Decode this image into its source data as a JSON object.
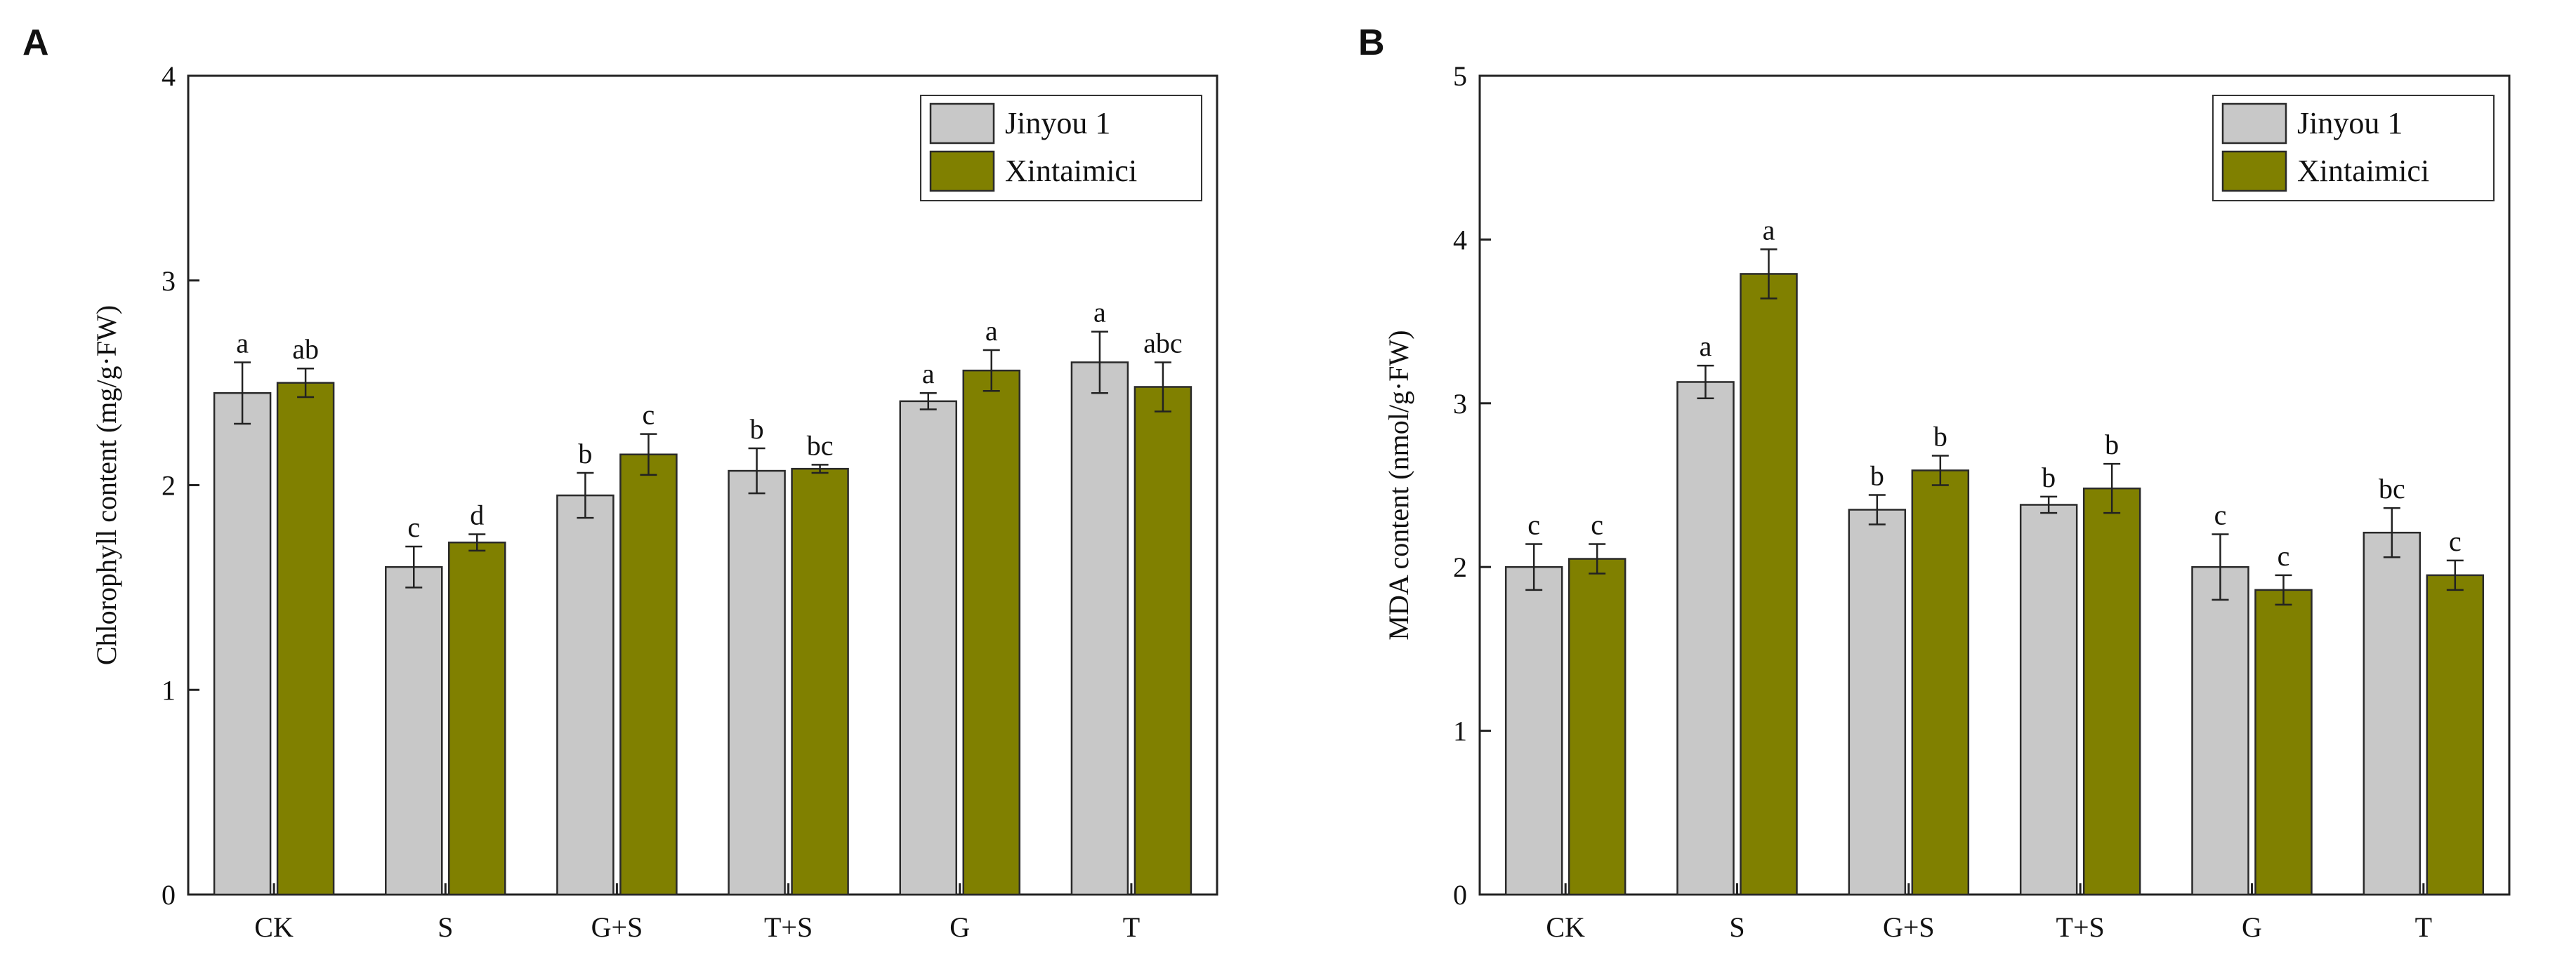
{
  "chart_data": [
    {
      "type": "bar",
      "panel": "A",
      "title": "",
      "xlabel": "",
      "ylabel": "Chlorophyll content (mg/g·FW)",
      "ylim": [
        0,
        4
      ],
      "yticks": [
        "0",
        "1",
        "2",
        "3",
        "4"
      ],
      "categories": [
        "CK",
        "S",
        "G+S",
        "T+S",
        "G",
        "T"
      ],
      "legend_position": "top-right",
      "series": [
        {
          "name": "Jinyou 1",
          "color": "#c8c8c8",
          "values": [
            2.45,
            1.6,
            1.95,
            2.07,
            2.41,
            2.6
          ],
          "errors": [
            0.15,
            0.1,
            0.11,
            0.11,
            0.04,
            0.15
          ],
          "labels": [
            "a",
            "c",
            "b",
            "b",
            "a",
            "a"
          ]
        },
        {
          "name": "Xintaimici",
          "color": "#808000",
          "values": [
            2.5,
            1.72,
            2.15,
            2.08,
            2.56,
            2.48
          ],
          "errors": [
            0.07,
            0.04,
            0.1,
            0.02,
            0.1,
            0.12
          ],
          "labels": [
            "ab",
            "d",
            "c",
            "bc",
            "a",
            "abc"
          ]
        }
      ]
    },
    {
      "type": "bar",
      "panel": "B",
      "title": "",
      "xlabel": "",
      "ylabel": "MDA content (nmol/g·FW)",
      "ylim": [
        0,
        5
      ],
      "yticks": [
        "0",
        "1",
        "2",
        "3",
        "4",
        "5"
      ],
      "categories": [
        "CK",
        "S",
        "G+S",
        "T+S",
        "G",
        "T"
      ],
      "legend_position": "top-right",
      "series": [
        {
          "name": "Jinyou 1",
          "color": "#c8c8c8",
          "values": [
            2.0,
            3.13,
            2.35,
            2.38,
            2.0,
            2.21
          ],
          "errors": [
            0.14,
            0.1,
            0.09,
            0.05,
            0.2,
            0.15
          ],
          "labels": [
            "c",
            "a",
            "b",
            "b",
            "c",
            "bc"
          ]
        },
        {
          "name": "Xintaimici",
          "color": "#808000",
          "values": [
            2.05,
            3.79,
            2.59,
            2.48,
            1.86,
            1.95
          ],
          "errors": [
            0.09,
            0.15,
            0.09,
            0.15,
            0.09,
            0.09
          ],
          "labels": [
            "c",
            "a",
            "b",
            "b",
            "c",
            "c"
          ]
        }
      ]
    }
  ]
}
